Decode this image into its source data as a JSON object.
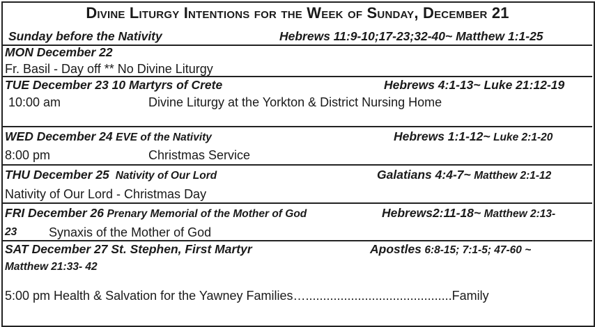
{
  "title": "Divine Liturgy Intentions for the Week of Sunday, December 21",
  "sunday": {
    "heading": "Sunday before the Nativity",
    "readings": "Hebrews 11:9-10;17-23;32-40~ Matthew 1:1-25"
  },
  "mon": {
    "heading": "MON December 22",
    "line": "Fr. Basil - Day off ** No Divine Liturgy"
  },
  "tue": {
    "heading": "TUE December 23 10 Martyrs of Crete",
    "readings": "Hebrews 4:1-13~ Luke 21:12-19",
    "time": "10:00 am",
    "service": "Divine Liturgy at the Yorkton & District Nursing Home"
  },
  "wed": {
    "heading_day": "WED December 24",
    "heading_feast": "EVE of the Nativity",
    "readings_a": "Hebrews 1:1-12~",
    "readings_b": "Luke 2:1-20",
    "time": "8:00 pm",
    "service": "Christmas Service"
  },
  "thu": {
    "heading_day": "THU December 25",
    "heading_feast": "Nativity of Our Lord",
    "readings_a": "Galatians 4:4-7~",
    "readings_b": "Matthew 2:1-12",
    "line": "Nativity of Our Lord - Christmas Day"
  },
  "fri": {
    "heading_day": "FRI December 26",
    "heading_feast": "Prenary Memorial of the Mother of God",
    "readings_a": "Hebrews2:11-18~",
    "readings_b": "Matthew 2:13-",
    "readings_c": "23",
    "service": "Synaxis of the Mother of God"
  },
  "sat": {
    "heading": "SAT December 27 St. Stephen, First Martyr",
    "readings_a": "Apostles",
    "readings_b": "6:8-15; 7:1-5; 47-60 ~",
    "readings_c": "Matthew 21:33- 42",
    "line": "5:00 pm Health & Salvation for the Yawney Families…..........................................Family"
  }
}
